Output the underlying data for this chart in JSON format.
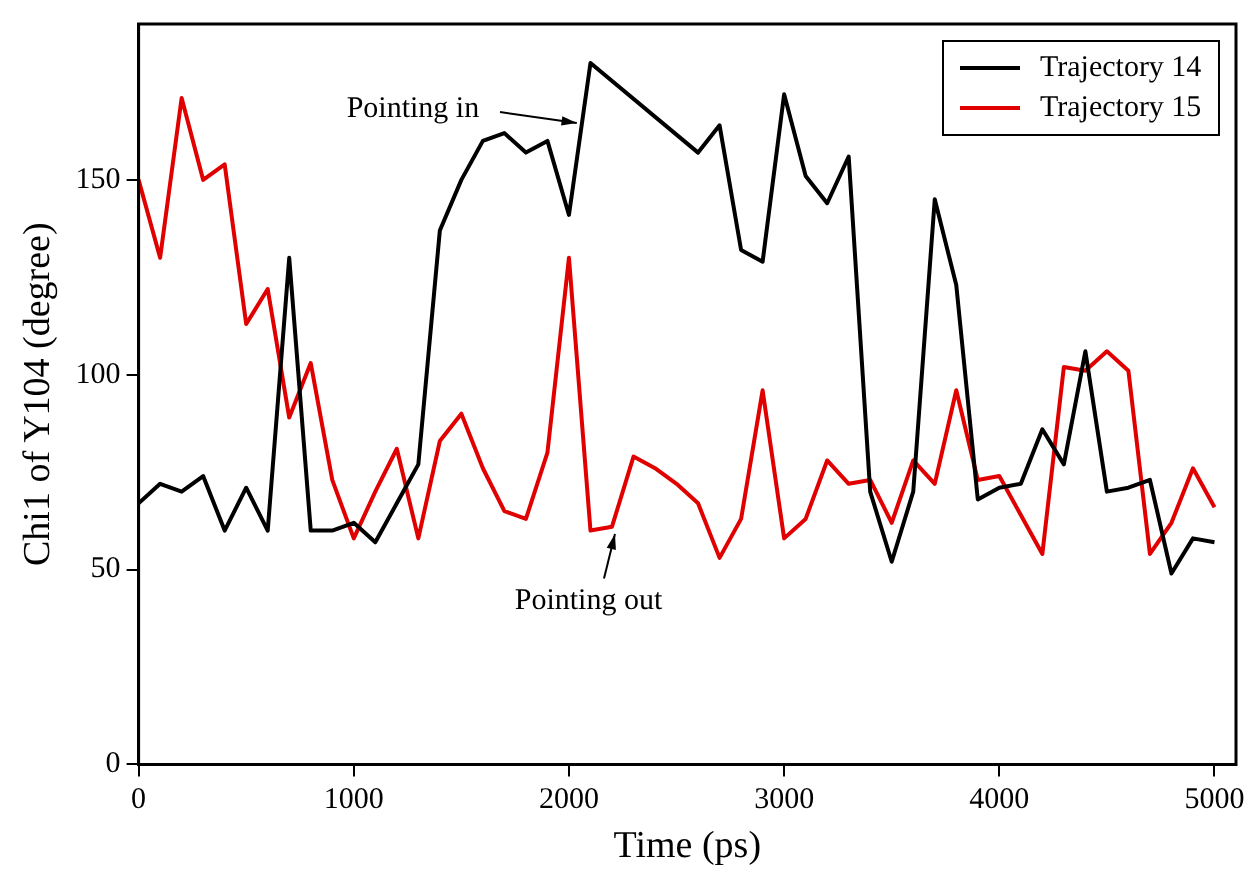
{
  "chart_data": {
    "type": "line",
    "xlabel": "Time (ps)",
    "ylabel": "Chi1 of Y104 (degree)",
    "xlim": [
      0,
      5100
    ],
    "xticks": [
      0,
      1000,
      2000,
      3000,
      4000,
      5000
    ],
    "ylim": [
      0,
      190
    ],
    "yticks": [
      0,
      50,
      100,
      150
    ],
    "grid": false,
    "legend": "top right",
    "marker": "none",
    "line_style": "solid",
    "annotations": [
      "Pointing in",
      "Pointing out"
    ],
    "series": [
      {
        "name": "Trajectory 14",
        "color": "#000000",
        "x": [
          0,
          100,
          200,
          300,
          400,
          500,
          600,
          700,
          800,
          900,
          1000,
          1100,
          1200,
          1300,
          1400,
          1500,
          1600,
          1700,
          1800,
          1900,
          2000,
          2100,
          2600,
          2700,
          2800,
          2900,
          3000,
          3100,
          3200,
          3300,
          3400,
          3500,
          3600,
          3700,
          3800,
          3900,
          4000,
          4100,
          4200,
          4300,
          4400,
          4500,
          4600,
          4700,
          4800,
          4900,
          5000
        ],
        "values": [
          67,
          72,
          70,
          74,
          60,
          71,
          60,
          130,
          60,
          60,
          62,
          57,
          67,
          77,
          137,
          150,
          160,
          162,
          157,
          160,
          141,
          180,
          157,
          164,
          132,
          129,
          172,
          151,
          144,
          156,
          70,
          52,
          70,
          145,
          123,
          68,
          71,
          72,
          86,
          77,
          106,
          70,
          71,
          73,
          49,
          58,
          57
        ]
      },
      {
        "name": "Trajectory 15",
        "color": "#e00000",
        "x": [
          0,
          100,
          200,
          300,
          400,
          500,
          600,
          700,
          800,
          900,
          1000,
          1100,
          1200,
          1300,
          1400,
          1500,
          1600,
          1700,
          1800,
          1900,
          2000,
          2100,
          2200,
          2300,
          2400,
          2500,
          2600,
          2700,
          2800,
          2900,
          3000,
          3100,
          3200,
          3300,
          3400,
          3500,
          3600,
          3700,
          3800,
          3900,
          4000,
          4100,
          4200,
          4300,
          4400,
          4500,
          4600,
          4700,
          4800,
          4900,
          5000
        ],
        "values": [
          150,
          130,
          171,
          150,
          154,
          113,
          122,
          89,
          103,
          73,
          58,
          70,
          81,
          58,
          83,
          90,
          76,
          65,
          63,
          80,
          130,
          60,
          61,
          79,
          76,
          72,
          67,
          53,
          63,
          96,
          58,
          63,
          78,
          72,
          73,
          62,
          78,
          72,
          96,
          73,
          74,
          64,
          54,
          102,
          101,
          106,
          101,
          54,
          62,
          76,
          66
        ]
      }
    ]
  }
}
